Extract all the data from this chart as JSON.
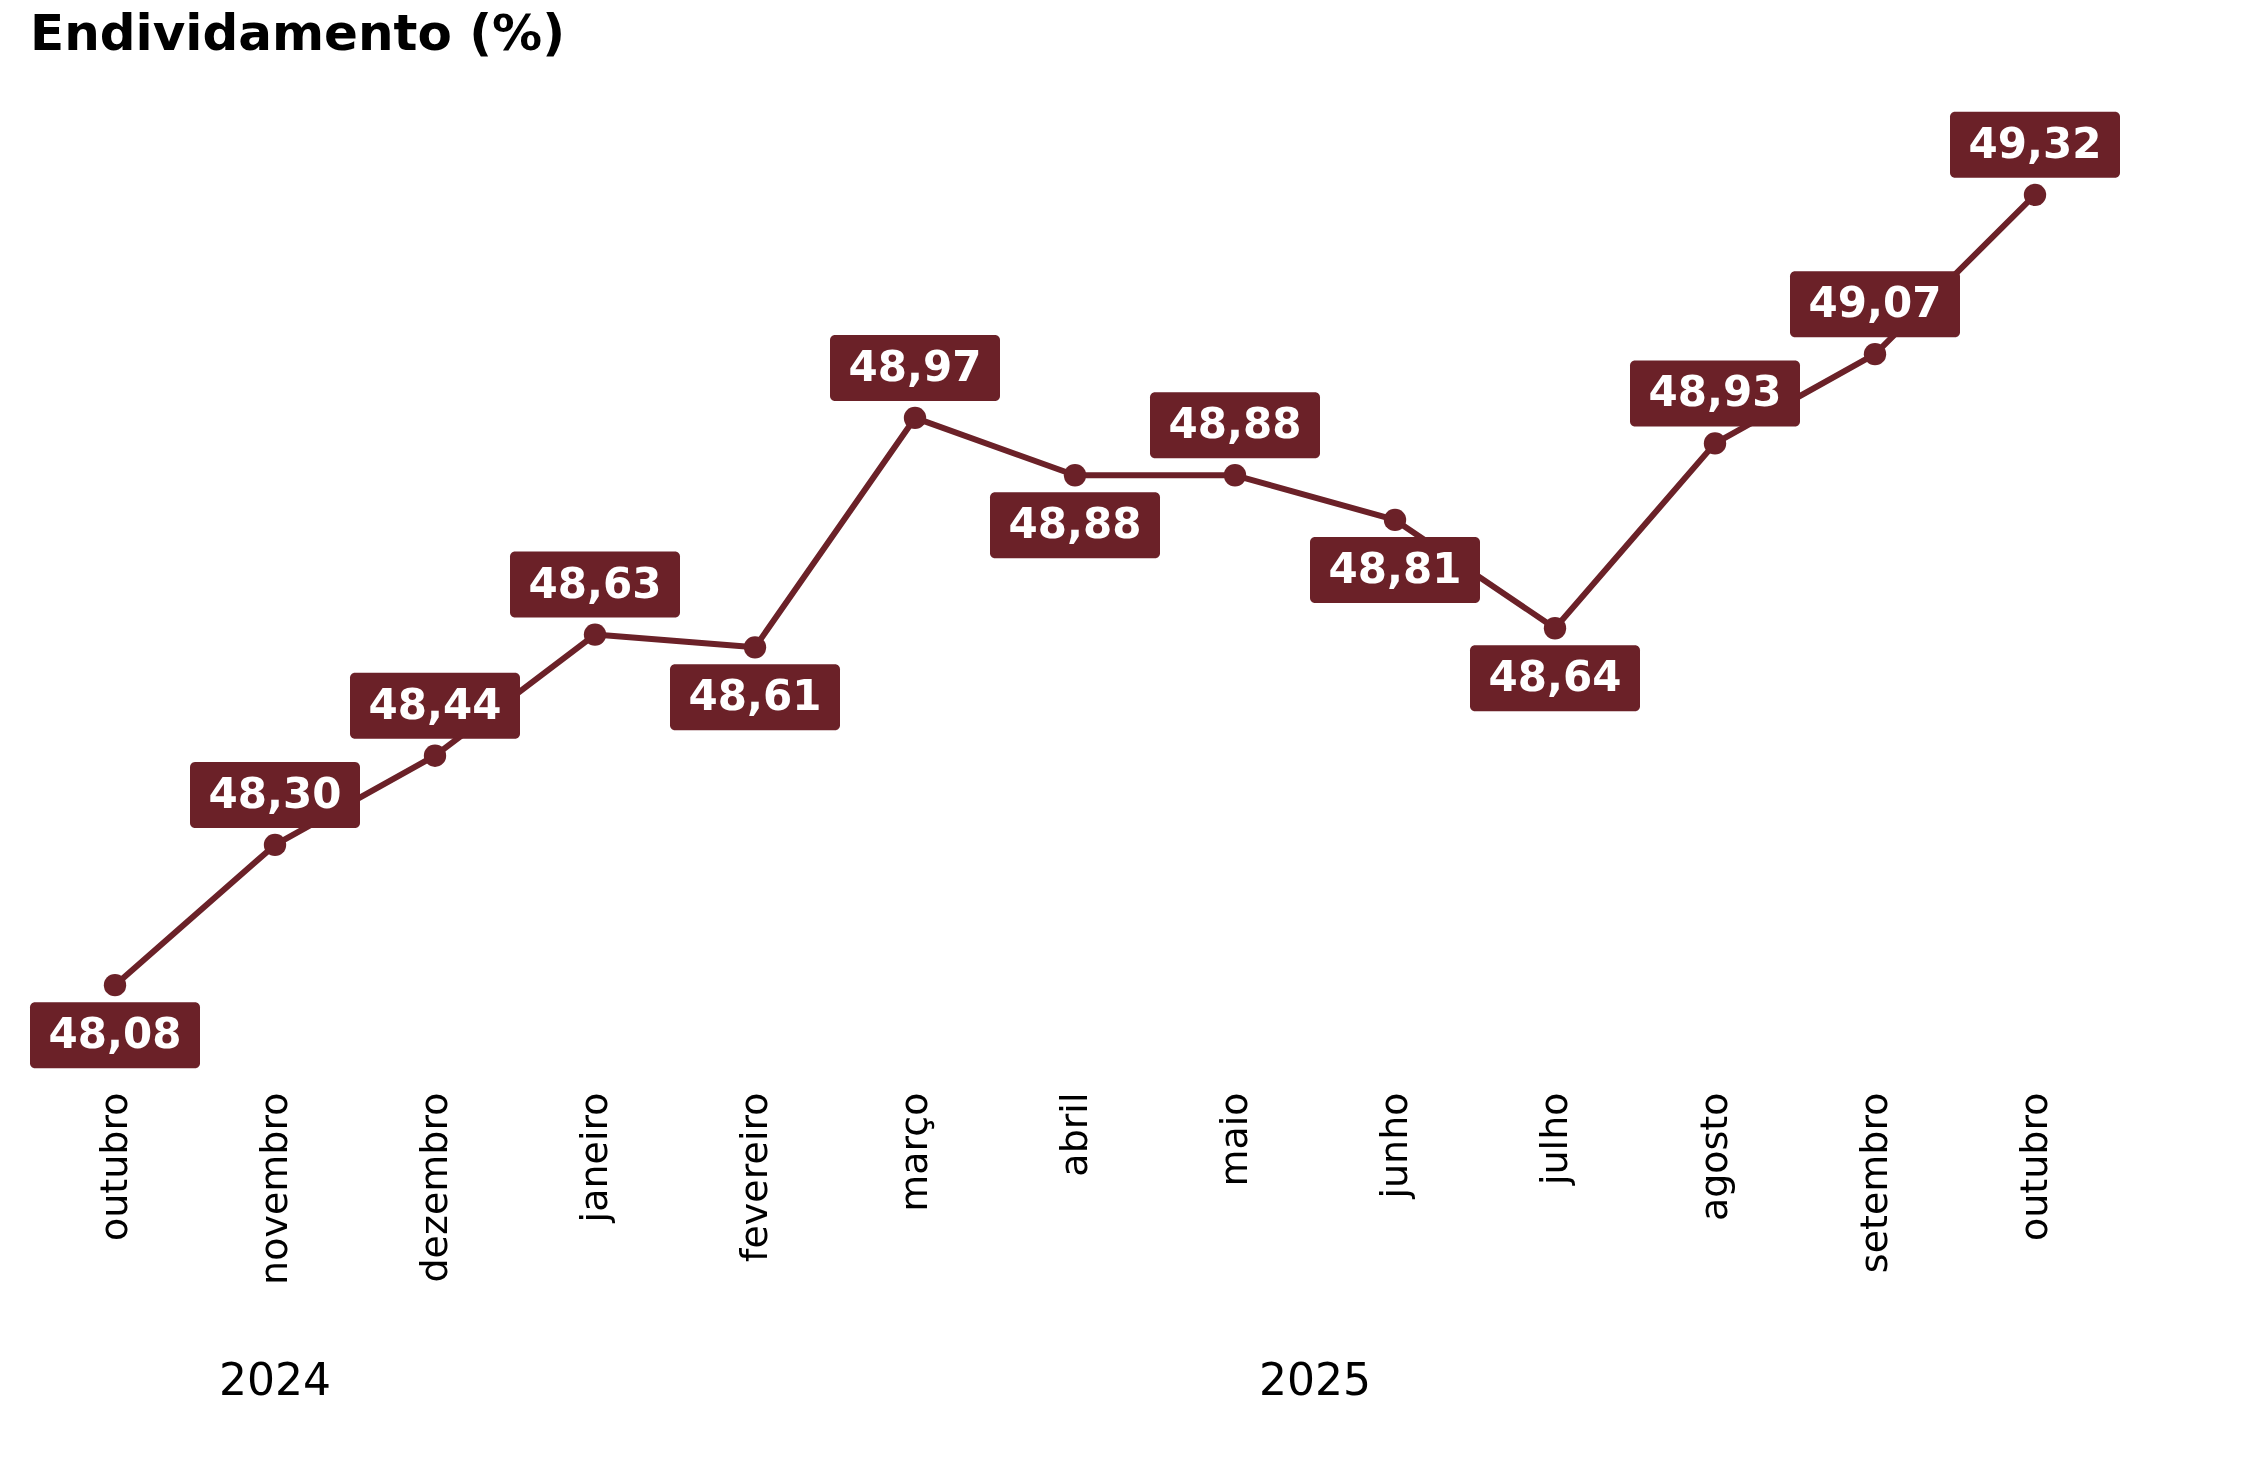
{
  "chart_data": {
    "type": "line",
    "title": "Endividamento (%)",
    "categories": [
      "outubro",
      "novembro",
      "dezembro",
      "janeiro",
      "fevereiro",
      "março",
      "abril",
      "maio",
      "junho",
      "julho",
      "agosto",
      "setembro",
      "outubro"
    ],
    "series": [
      {
        "color": "#6b2128",
        "values": [
          48.08,
          48.3,
          48.44,
          48.63,
          48.61,
          48.97,
          48.88,
          48.88,
          48.81,
          48.64,
          48.93,
          49.07,
          49.32
        ],
        "value_labels": [
          "48,08",
          "48,30",
          "48,44",
          "48,63",
          "48,61",
          "48,97",
          "48,88",
          "48,88",
          "48,81",
          "48,64",
          "48,93",
          "49,07",
          "49,32"
        ]
      }
    ],
    "marker": "circle",
    "grid": false,
    "tick_labels": "x",
    "annotations": [
      "2024",
      "2025"
    ]
  }
}
